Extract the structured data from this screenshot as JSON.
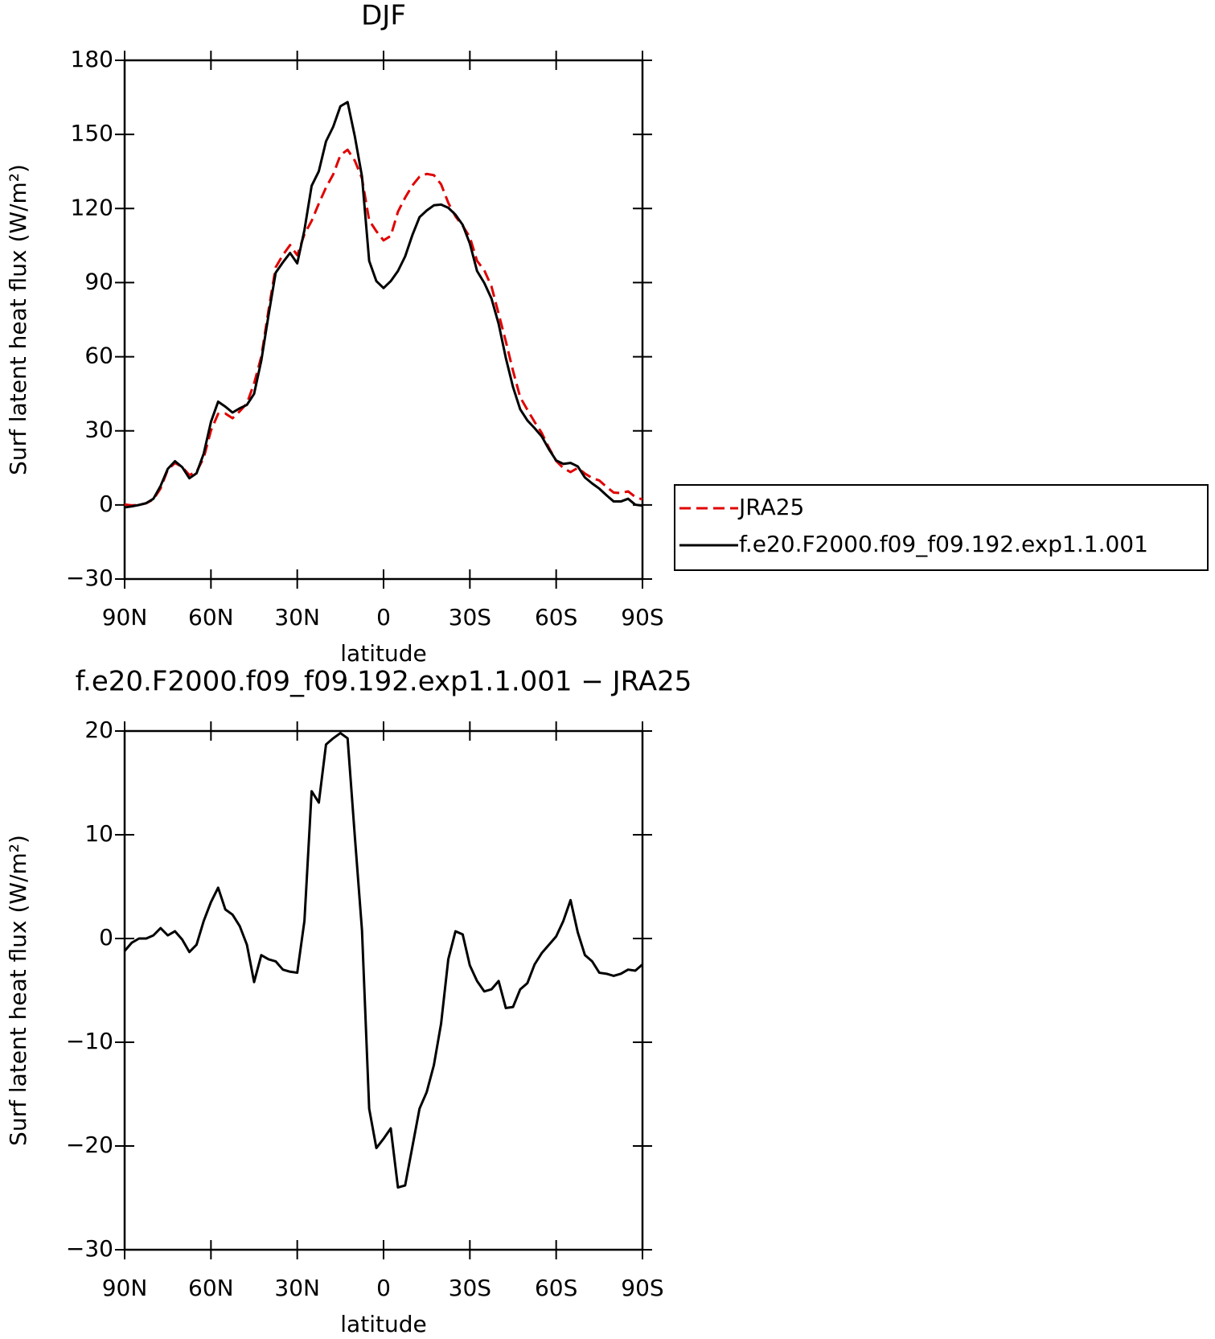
{
  "chart_data": [
    {
      "type": "line",
      "title": "DJF",
      "xlabel": "latitude",
      "ylabel": "Surf latent heat flux (W/m²)",
      "x": [
        90,
        87.5,
        85,
        82.5,
        80,
        77.5,
        75,
        72.5,
        70,
        67.5,
        65,
        62.5,
        60,
        57.5,
        55,
        52.5,
        50,
        47.5,
        45,
        42.5,
        40,
        37.5,
        35,
        32.5,
        30,
        27.5,
        25,
        22.5,
        20,
        17.5,
        15,
        12.5,
        10,
        7.5,
        5,
        2.5,
        0,
        -2.5,
        -5,
        -7.5,
        -10,
        -12.5,
        -15,
        -17.5,
        -20,
        -22.5,
        -25,
        -27.5,
        -30,
        -32.5,
        -35,
        -37.5,
        -40,
        -42.5,
        -45,
        -47.5,
        -50,
        -52.5,
        -55,
        -57.5,
        -60,
        -62.5,
        -65,
        -67.5,
        -70,
        -72.5,
        -75,
        -77.5,
        -80,
        -82.5,
        -85,
        -87.5,
        -90
      ],
      "series": [
        {
          "name": "JRA25",
          "color": "#e00000",
          "linestyle": "dashed",
          "values": [
            0.2,
            -0.2,
            0,
            0.7,
            2.2,
            6.7,
            14.3,
            17.0,
            15.4,
            12.1,
            13.4,
            19.1,
            30.1,
            36.9,
            37.0,
            35.1,
            37.9,
            41.1,
            49.2,
            60.0,
            78.7,
            96.2,
            101.2,
            105.2,
            101.1,
            109.6,
            115.0,
            122.0,
            128.5,
            133.8,
            141.6,
            143.8,
            139.4,
            132.2,
            115.2,
            110.8,
            107.1,
            108.9,
            118.7,
            124.4,
            129.3,
            132.9,
            134.0,
            133.5,
            129.8,
            122.3,
            116.8,
            113.0,
            108.4,
            98.8,
            95.0,
            88.5,
            77.4,
            66.2,
            54.3,
            43.6,
            38.5,
            33.6,
            29.1,
            23.1,
            17.8,
            14.9,
            13.3,
            15.0,
            12.7,
            10.9,
            9.9,
            7.3,
            5.0,
            4.8,
            5.5,
            3.2,
            2.2
          ]
        },
        {
          "name": "f.e20.F2000.f09_f09.192.exp1.1.001",
          "color": "#000000",
          "linestyle": "solid",
          "values": [
            -1.0,
            -0.6,
            0,
            0.7,
            2.5,
            7.7,
            14.6,
            17.7,
            15.3,
            10.8,
            12.8,
            20.8,
            33.6,
            41.8,
            39.8,
            37.4,
            39.1,
            40.5,
            45.0,
            58.4,
            76.7,
            94.0,
            98.2,
            102.0,
            97.8,
            111.3,
            129.2,
            135.1,
            147.2,
            153.1,
            161.4,
            163.1,
            149.3,
            133.0,
            98.8,
            90.6,
            87.8,
            90.6,
            94.7,
            100.6,
            109.2,
            116.5,
            119.2,
            121.3,
            121.6,
            120.3,
            117.5,
            113.4,
            105.8,
            94.7,
            89.9,
            83.6,
            73.3,
            59.5,
            47.7,
            38.7,
            34.2,
            31.1,
            27.7,
            22.5,
            18.0,
            16.6,
            17.0,
            15.6,
            11.1,
            8.7,
            6.6,
            3.9,
            1.4,
            1.4,
            2.5,
            0.1,
            -0.3
          ]
        }
      ],
      "xlim": [
        90,
        -90
      ],
      "xticks": [
        {
          "value": 90,
          "label": "90N"
        },
        {
          "value": 60,
          "label": "60N"
        },
        {
          "value": 30,
          "label": "30N"
        },
        0,
        {
          "value": -30,
          "label": "30S"
        },
        {
          "value": -60,
          "label": "60S"
        },
        {
          "value": -90,
          "label": "90S"
        }
      ],
      "ylim": [
        -30,
        180
      ],
      "yticks": [
        {
          "value": -30,
          "label": "−30"
        },
        0,
        30,
        60,
        90,
        120,
        150,
        180
      ],
      "legend": "right"
    },
    {
      "type": "line",
      "title": "f.e20.F2000.f09_f09.192.exp1.1.001 − JRA25",
      "xlabel": "latitude",
      "ylabel": "Surf latent heat flux (W/m²)",
      "x": [
        90,
        87.5,
        85,
        82.5,
        80,
        77.5,
        75,
        72.5,
        70,
        67.5,
        65,
        62.5,
        60,
        57.5,
        55,
        52.5,
        50,
        47.5,
        45,
        42.5,
        40,
        37.5,
        35,
        32.5,
        30,
        27.5,
        25,
        22.5,
        20,
        17.5,
        15,
        12.5,
        10,
        7.5,
        5,
        2.5,
        0,
        -2.5,
        -5,
        -7.5,
        -10,
        -12.5,
        -15,
        -17.5,
        -20,
        -22.5,
        -25,
        -27.5,
        -30,
        -32.5,
        -35,
        -37.5,
        -40,
        -42.5,
        -45,
        -47.5,
        -50,
        -52.5,
        -55,
        -57.5,
        -60,
        -62.5,
        -65,
        -67.5,
        -70,
        -72.5,
        -75,
        -77.5,
        -80,
        -82.5,
        -85,
        -87.5,
        -90
      ],
      "series": [
        {
          "color": "#000000",
          "linestyle": "solid",
          "values": [
            -1.2,
            -0.4,
            0,
            0,
            0.3,
            1.0,
            0.3,
            0.7,
            -0.1,
            -1.3,
            -0.6,
            1.7,
            3.5,
            4.9,
            2.8,
            2.3,
            1.2,
            -0.6,
            -4.2,
            -1.6,
            -2.0,
            -2.2,
            -3.0,
            -3.2,
            -3.3,
            1.7,
            14.2,
            13.1,
            18.7,
            19.3,
            19.8,
            19.3,
            9.9,
            0.8,
            -16.4,
            -20.2,
            -19.3,
            -18.3,
            -24.0,
            -23.8,
            -20.1,
            -16.4,
            -14.8,
            -12.2,
            -8.2,
            -2.0,
            0.7,
            0.4,
            -2.6,
            -4.1,
            -5.1,
            -4.9,
            -4.1,
            -6.7,
            -6.6,
            -4.9,
            -4.3,
            -2.5,
            -1.4,
            -0.6,
            0.2,
            1.7,
            3.7,
            0.6,
            -1.6,
            -2.2,
            -3.3,
            -3.4,
            -3.6,
            -3.4,
            -3.0,
            -3.1,
            -2.5
          ]
        }
      ],
      "xlim": [
        90,
        -90
      ],
      "xticks": [
        {
          "value": 90,
          "label": "90N"
        },
        {
          "value": 60,
          "label": "60N"
        },
        {
          "value": 30,
          "label": "30N"
        },
        0,
        {
          "value": -30,
          "label": "30S"
        },
        {
          "value": -60,
          "label": "60S"
        },
        {
          "value": -90,
          "label": "90S"
        }
      ],
      "ylim": [
        -30,
        20
      ],
      "yticks": [
        {
          "value": -30,
          "label": "−30"
        },
        {
          "value": -20,
          "label": "−20"
        },
        {
          "value": -10,
          "label": "−10"
        },
        0,
        10,
        20
      ]
    }
  ]
}
